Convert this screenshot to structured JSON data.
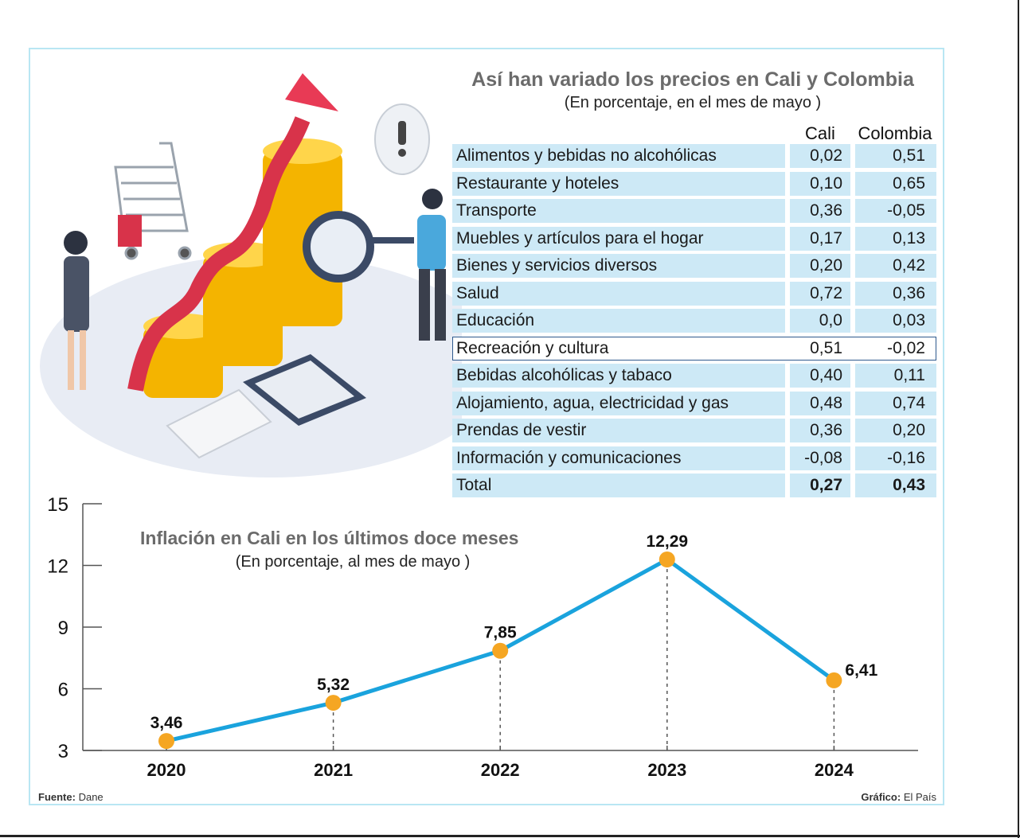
{
  "table": {
    "title": "Así han variado los precios en Cali y Colombia",
    "subtitle": "(En porcentaje, en el mes de mayo )",
    "col_cali": "Cali",
    "col_colombia": "Colombia",
    "rows": [
      {
        "label": "Alimentos y bebidas no alcohólicas",
        "cali": "0,02",
        "colombia": "0,51"
      },
      {
        "label": "Restaurante y hoteles",
        "cali": "0,10",
        "colombia": "0,65"
      },
      {
        "label": "Transporte",
        "cali": "0,36",
        "colombia": "-0,05"
      },
      {
        "label": "Muebles y artículos para el hogar",
        "cali": "0,17",
        "colombia": "0,13"
      },
      {
        "label": "Bienes y servicios diversos",
        "cali": "0,20",
        "colombia": "0,42"
      },
      {
        "label": "Salud",
        "cali": "0,72",
        "colombia": "0,36"
      },
      {
        "label": "Educación",
        "cali": "0,0",
        "colombia": "0,03"
      },
      {
        "label": "Recreación y cultura",
        "cali": "0,51",
        "colombia": "-0,02"
      },
      {
        "label": "Bebidas alcohólicas y tabaco",
        "cali": "0,40",
        "colombia": "0,11"
      },
      {
        "label": "Alojamiento, agua, electricidad y gas",
        "cali": "0,48",
        "colombia": "0,74"
      },
      {
        "label": "Prendas de vestir",
        "cali": "0,36",
        "colombia": "0,20"
      },
      {
        "label": "Información y comunicaciones",
        "cali": "-0,08",
        "colombia": "-0,16"
      },
      {
        "label": "Total",
        "cali": "0,27",
        "colombia": "0,43"
      }
    ]
  },
  "chart_data": {
    "type": "line",
    "title": "Inflación en Cali en los últimos doce meses",
    "subtitle": "(En porcentaje, al mes de mayo )",
    "categories": [
      "2020",
      "2021",
      "2022",
      "2023",
      "2024"
    ],
    "values": [
      3.46,
      5.32,
      7.85,
      12.29,
      6.41
    ],
    "value_labels": [
      "3,46",
      "5,32",
      "7,85",
      "12,29",
      "6,41"
    ],
    "yticks": [
      3,
      6,
      9,
      12,
      15
    ],
    "ylim": [
      3,
      15
    ],
    "grid": false,
    "line_color": "#1aa3dd",
    "marker_color": "#f5a623"
  },
  "footer": {
    "source_label": "Fuente:",
    "source_value": "Dane",
    "credit_label": "Gráfico:",
    "credit_value": "El País"
  },
  "colors": {
    "table_cell": "#cde9f6",
    "frame": "#b9e6f3",
    "highlight_border": "#2f5a8e"
  }
}
